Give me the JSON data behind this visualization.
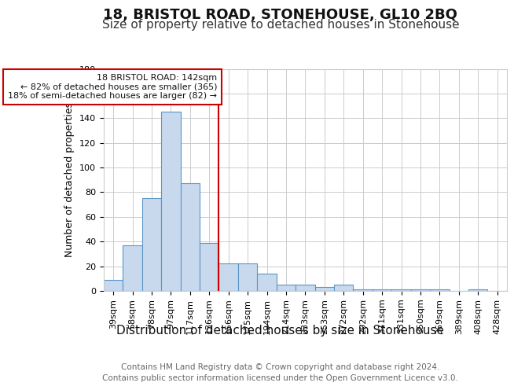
{
  "title": "18, BRISTOL ROAD, STONEHOUSE, GL10 2BQ",
  "subtitle": "Size of property relative to detached houses in Stonehouse",
  "xlabel": "Distribution of detached houses by size in Stonehouse",
  "ylabel": "Number of detached properties",
  "categories": [
    "39sqm",
    "58sqm",
    "78sqm",
    "97sqm",
    "117sqm",
    "136sqm",
    "156sqm",
    "175sqm",
    "194sqm",
    "214sqm",
    "233sqm",
    "253sqm",
    "272sqm",
    "292sqm",
    "311sqm",
    "331sqm",
    "350sqm",
    "369sqm",
    "389sqm",
    "408sqm",
    "428sqm"
  ],
  "values": [
    9,
    37,
    75,
    145,
    87,
    39,
    22,
    22,
    14,
    5,
    5,
    3,
    5,
    1,
    1,
    1,
    1,
    1,
    0,
    1,
    0
  ],
  "bar_color": "#c8d9ed",
  "bar_edge_color": "#5a96c8",
  "red_line_index": 6,
  "red_line_color": "#cc0000",
  "annotation_line1": "18 BRISTOL ROAD: 142sqm",
  "annotation_line2": "← 82% of detached houses are smaller (365)",
  "annotation_line3": "18% of semi-detached houses are larger (82) →",
  "annotation_box_edge": "#cc0000",
  "ylim": [
    0,
    180
  ],
  "yticks": [
    0,
    20,
    40,
    60,
    80,
    100,
    120,
    140,
    160,
    180
  ],
  "footer1": "Contains HM Land Registry data © Crown copyright and database right 2024.",
  "footer2": "Contains public sector information licensed under the Open Government Licence v3.0.",
  "background_color": "#ffffff",
  "grid_color": "#cccccc",
  "title_fontsize": 13,
  "subtitle_fontsize": 11,
  "xlabel_fontsize": 11,
  "ylabel_fontsize": 9,
  "tick_fontsize": 8,
  "annotation_fontsize": 8,
  "footer_fontsize": 7.5
}
